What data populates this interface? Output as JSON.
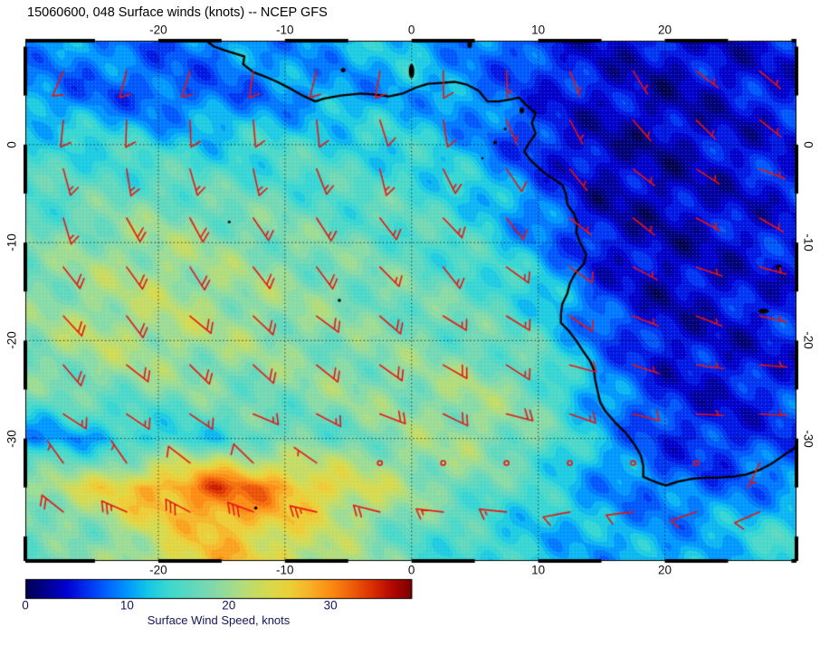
{
  "title": "15060600, 048 Surface winds (knots) -- NCEP GFS",
  "axes": {
    "lon_ticks": [
      {
        "value": -20,
        "label": "-20"
      },
      {
        "value": -10,
        "label": "-10"
      },
      {
        "value": 0,
        "label": "0"
      },
      {
        "value": 10,
        "label": "10"
      },
      {
        "value": 20,
        "label": "20"
      }
    ],
    "lat_ticks": [
      {
        "value": 0,
        "label": "0"
      },
      {
        "value": -10,
        "label": "-10"
      },
      {
        "value": -20,
        "label": "-20"
      },
      {
        "value": -30,
        "label": "-30"
      }
    ]
  },
  "colorbar": {
    "label": "Surface Wind Speed, knots",
    "range": [
      0,
      38
    ],
    "ticks": [
      {
        "value": 0,
        "label": "0"
      },
      {
        "value": 10,
        "label": "10"
      },
      {
        "value": 20,
        "label": "20"
      },
      {
        "value": 30,
        "label": "30"
      }
    ]
  },
  "colors": {
    "barb": "#e8150f",
    "coastline": "#000000",
    "title_text": "#000000",
    "colorbar_text": "#14145a"
  },
  "chart_data": {
    "type": "heatmap",
    "subtype": "surface-wind-speed-with-wind-barbs",
    "title": "15060600, 048 Surface winds (knots) -- NCEP GFS",
    "units": "knots",
    "proj": {
      "lon_min": -30.5,
      "lon_max": 30.4,
      "lat_min": -42.5,
      "lat_max": 10.6
    },
    "lon_gridlines": [
      -20,
      -10,
      0,
      10,
      20
    ],
    "lat_gridlines": [
      0,
      -10,
      -20,
      -30
    ],
    "contour_interval_knots": 1.25,
    "grid_lon": [
      -30,
      -25,
      -20,
      -15,
      -10,
      -5,
      0,
      5,
      10,
      15,
      20,
      25,
      30
    ],
    "grid_lat": [
      10,
      5,
      0,
      -5,
      -10,
      -15,
      -20,
      -25,
      -30,
      -35,
      -40
    ],
    "speed_knots": [
      [
        10,
        9,
        8,
        9,
        10,
        11,
        12,
        9,
        6,
        4,
        4,
        4,
        5
      ],
      [
        9,
        8,
        7,
        8,
        9,
        10,
        11,
        9,
        6,
        4,
        3,
        4,
        5
      ],
      [
        14,
        14,
        13,
        13,
        14,
        14,
        13,
        10,
        5,
        3,
        3,
        4,
        5
      ],
      [
        15,
        16,
        17,
        16,
        16,
        15,
        15,
        13,
        8,
        3,
        3,
        4,
        5
      ],
      [
        17,
        19,
        20,
        19,
        18,
        17,
        16,
        14,
        10,
        4,
        3,
        4,
        5
      ],
      [
        18,
        20,
        21,
        20,
        19,
        18,
        17,
        16,
        13,
        6,
        3,
        4,
        5
      ],
      [
        19,
        21,
        21,
        20,
        19,
        18,
        18,
        17,
        15,
        8,
        4,
        4,
        5
      ],
      [
        17,
        18,
        18,
        18,
        18,
        19,
        19,
        20,
        17,
        10,
        5,
        4,
        6
      ],
      [
        10,
        11,
        13,
        14,
        16,
        17,
        19,
        20,
        17,
        11,
        6,
        5,
        7
      ],
      [
        20,
        24,
        29,
        33,
        29,
        24,
        20,
        17,
        14,
        10,
        8,
        8,
        10
      ],
      [
        16,
        18,
        23,
        27,
        24,
        20,
        16,
        14,
        12,
        11,
        10,
        12,
        14
      ]
    ],
    "dir_from_deg": [
      [
        210,
        205,
        200,
        198,
        195,
        192,
        188,
        182,
        170,
        152,
        140,
        132,
        128
      ],
      [
        196,
        193,
        190,
        187,
        184,
        181,
        178,
        172,
        162,
        150,
        140,
        130,
        125
      ],
      [
        180,
        178,
        175,
        172,
        170,
        167,
        164,
        157,
        147,
        138,
        130,
        124,
        120
      ],
      [
        163,
        161,
        159,
        157,
        154,
        152,
        149,
        144,
        137,
        130,
        124,
        118,
        114
      ],
      [
        151,
        150,
        148,
        146,
        144,
        142,
        140,
        136,
        131,
        125,
        119,
        113,
        109
      ],
      [
        143,
        142,
        140,
        138,
        136,
        134,
        131,
        128,
        124,
        118,
        112,
        107,
        104
      ],
      [
        137,
        136,
        134,
        132,
        130,
        128,
        125,
        122,
        118,
        113,
        107,
        101,
        98
      ],
      [
        131,
        130,
        128,
        126,
        124,
        121,
        119,
        116,
        112,
        107,
        101,
        95,
        91
      ],
      [
        122,
        120,
        118,
        116,
        114,
        112,
        109,
        106,
        102,
        97,
        91,
        87,
        84
      ],
      [
        316,
        312,
        308,
        303,
        299,
        294,
        288,
        280,
        271,
        261,
        252,
        246,
        241
      ],
      [
        296,
        292,
        289,
        285,
        281,
        277,
        273,
        268,
        262,
        256,
        251,
        248,
        246
      ]
    ],
    "barb_lons": [
      -27.5,
      -22.5,
      -17.5,
      -12.5,
      -7.5,
      -2.5,
      2.5,
      7.5,
      12.5,
      17.5,
      22.5,
      27.5
    ],
    "barb_lats": [
      7.5,
      2.5,
      -2.5,
      -7.5,
      -12.5,
      -17.5,
      -22.5,
      -27.5,
      -32.5,
      -37.5
    ],
    "colormap_stops": [
      [
        0,
        "#000050"
      ],
      [
        2,
        "#000090"
      ],
      [
        4,
        "#0000d2"
      ],
      [
        6,
        "#0030f0"
      ],
      [
        8,
        "#0064ff"
      ],
      [
        10,
        "#0098ff"
      ],
      [
        12,
        "#14c8e8"
      ],
      [
        14,
        "#3cd8d0"
      ],
      [
        16,
        "#5cd8c0"
      ],
      [
        18,
        "#7cd8b0"
      ],
      [
        20,
        "#9cdc94"
      ],
      [
        22,
        "#bedc6e"
      ],
      [
        24,
        "#d8da4c"
      ],
      [
        26,
        "#ecd038"
      ],
      [
        28,
        "#f8b028"
      ],
      [
        30,
        "#fc8c14"
      ],
      [
        32,
        "#f0600a"
      ],
      [
        34,
        "#dc3000"
      ],
      [
        36,
        "#b40800"
      ],
      [
        38,
        "#7c0000"
      ]
    ],
    "coastline_lonlat": [
      [
        -16.2,
        10.6
      ],
      [
        -15.6,
        10.0
      ],
      [
        -14.7,
        9.6
      ],
      [
        -13.2,
        9.0
      ],
      [
        -13.3,
        8.2
      ],
      [
        -12.9,
        7.8
      ],
      [
        -12.5,
        7.4
      ],
      [
        -11.5,
        6.9
      ],
      [
        -10.6,
        6.4
      ],
      [
        -9.4,
        5.6
      ],
      [
        -8.6,
        5.0
      ],
      [
        -7.6,
        4.4
      ],
      [
        -6.9,
        4.7
      ],
      [
        -5.6,
        5.0
      ],
      [
        -4.0,
        5.2
      ],
      [
        -2.8,
        5.1
      ],
      [
        -1.8,
        4.9
      ],
      [
        -0.7,
        5.2
      ],
      [
        0.3,
        5.8
      ],
      [
        1.3,
        6.2
      ],
      [
        2.4,
        6.3
      ],
      [
        3.4,
        6.4
      ],
      [
        4.4,
        6.1
      ],
      [
        5.3,
        5.5
      ],
      [
        6.0,
        4.4
      ],
      [
        6.9,
        4.4
      ],
      [
        7.8,
        4.6
      ],
      [
        8.5,
        4.8
      ],
      [
        9.0,
        4.1
      ],
      [
        9.8,
        3.2
      ],
      [
        9.5,
        2.2
      ],
      [
        9.8,
        1.1
      ],
      [
        9.3,
        0.2
      ],
      [
        8.9,
        -0.7
      ],
      [
        9.4,
        -1.6
      ],
      [
        10.4,
        -2.8
      ],
      [
        11.2,
        -3.5
      ],
      [
        11.9,
        -4.1
      ],
      [
        12.2,
        -5.1
      ],
      [
        12.3,
        -6.1
      ],
      [
        12.8,
        -7.0
      ],
      [
        13.1,
        -8.0
      ],
      [
        13.0,
        -8.9
      ],
      [
        13.3,
        -10.0
      ],
      [
        13.8,
        -11.2
      ],
      [
        13.6,
        -12.2
      ],
      [
        12.9,
        -13.2
      ],
      [
        12.5,
        -14.2
      ],
      [
        12.3,
        -15.2
      ],
      [
        11.9,
        -16.3
      ],
      [
        11.8,
        -17.3
      ],
      [
        11.8,
        -18.2
      ],
      [
        12.4,
        -19.0
      ],
      [
        13.0,
        -20.0
      ],
      [
        13.5,
        -21.0
      ],
      [
        14.1,
        -22.1
      ],
      [
        14.4,
        -23.0
      ],
      [
        14.5,
        -24.0
      ],
      [
        14.7,
        -25.2
      ],
      [
        14.9,
        -26.3
      ],
      [
        15.3,
        -27.2
      ],
      [
        16.1,
        -28.4
      ],
      [
        16.9,
        -29.4
      ],
      [
        17.6,
        -30.6
      ],
      [
        18.1,
        -31.7
      ],
      [
        18.3,
        -32.8
      ],
      [
        18.3,
        -33.9
      ],
      [
        18.8,
        -34.2
      ],
      [
        19.6,
        -34.6
      ],
      [
        20.1,
        -34.8
      ],
      [
        21.0,
        -34.4
      ],
      [
        22.2,
        -34.1
      ],
      [
        23.3,
        -34.0
      ],
      [
        24.2,
        -34.0
      ],
      [
        25.3,
        -33.9
      ],
      [
        26.4,
        -33.7
      ],
      [
        27.5,
        -33.2
      ],
      [
        28.4,
        -32.6
      ],
      [
        29.3,
        -31.8
      ],
      [
        30.1,
        -31.1
      ],
      [
        30.6,
        -30.6
      ]
    ],
    "dark_spots": [
      [
        8.7,
        3.5,
        2.5,
        3.5
      ],
      [
        7.4,
        1.6,
        1.5,
        1.5
      ],
      [
        6.6,
        0.2,
        2,
        2
      ],
      [
        5.6,
        -1.4,
        1.2,
        1.2
      ],
      [
        -14.4,
        -7.9,
        1.5,
        1.5
      ],
      [
        -5.7,
        -15.9,
        1.8,
        1.8
      ],
      [
        -12.3,
        -37.1,
        1.8,
        1.8
      ],
      [
        0.0,
        7.5,
        3,
        8
      ],
      [
        -5.4,
        7.6,
        2.5,
        2.5
      ],
      [
        4.6,
        10.2,
        2.5,
        4
      ],
      [
        27.8,
        -17.0,
        6,
        2.5
      ],
      [
        29.0,
        -12.5,
        3,
        3
      ]
    ]
  }
}
